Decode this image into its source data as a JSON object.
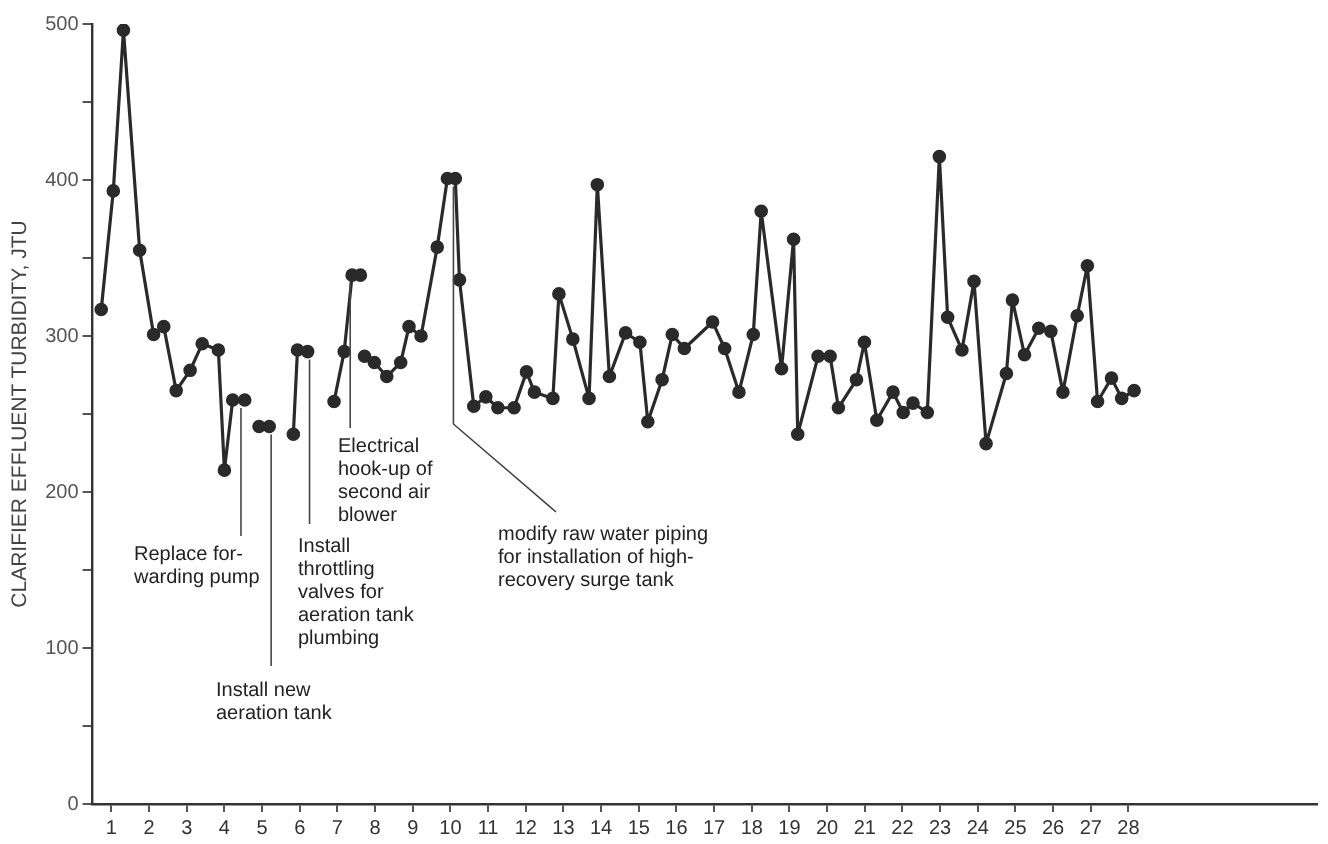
{
  "chart_data": {
    "type": "line",
    "ylabel": "CLARIFIER EFFLUENT TURBIDITY, JTU",
    "x": [
      0.73,
      1.05,
      1.32,
      1.75,
      2.12,
      2.39,
      2.72,
      3.09,
      3.41,
      3.84,
      4.0,
      4.22,
      4.54,
      4.7,
      4.92,
      5.19,
      5.5,
      5.83,
      5.94,
      6.05,
      6.21,
      6.5,
      6.91,
      7.18,
      7.39,
      7.61,
      7.66,
      7.72,
      7.98,
      8.31,
      8.68,
      8.9,
      9.22,
      9.65,
      9.92,
      10.13,
      10.24,
      10.62,
      10.94,
      11.26,
      11.69,
      12.02,
      12.23,
      12.72,
      12.88,
      13.25,
      13.68,
      13.9,
      14.22,
      14.65,
      15.03,
      15.24,
      15.62,
      15.89,
      16.21,
      16.96,
      17.28,
      17.66,
      18.04,
      18.25,
      18.79,
      19.11,
      19.22,
      19.76,
      20.08,
      20.3,
      20.78,
      20.99,
      21.32,
      21.75,
      22.02,
      22.28,
      22.66,
      22.98,
      23.2,
      23.58,
      23.9,
      24.22,
      24.76,
      24.92,
      25.24,
      25.62,
      25.94,
      26.26,
      26.64,
      26.91,
      27.18,
      27.55,
      27.82,
      28.15
    ],
    "series": [
      {
        "color": "#2a2a2a",
        "values": [
          317,
          393,
          496,
          355,
          301,
          306,
          265,
          278,
          295,
          291,
          214,
          259,
          259,
          null,
          242,
          242,
          null,
          237,
          291,
          null,
          290,
          null,
          258,
          290,
          339,
          339,
          null,
          287,
          283,
          274,
          283,
          306,
          300,
          357,
          401,
          401,
          336,
          255,
          261,
          254,
          254,
          277,
          264,
          260,
          327,
          298,
          260,
          397,
          274,
          302,
          296,
          245,
          272,
          301,
          292,
          309,
          292,
          264,
          301,
          380,
          279,
          362,
          237,
          287,
          287,
          254,
          272,
          296,
          246,
          264,
          251,
          257,
          251,
          415,
          312,
          291,
          335,
          231,
          276,
          323,
          288,
          305,
          303,
          264,
          313,
          345,
          258,
          273,
          260,
          265
        ]
      }
    ],
    "xlim": [
      0.5,
      33
    ],
    "xticks": [
      1,
      2,
      3,
      4,
      5,
      6,
      7,
      8,
      9,
      10,
      11,
      12,
      13,
      14,
      15,
      16,
      17,
      18,
      19,
      20,
      21,
      22,
      23,
      24,
      25,
      26,
      27,
      28
    ],
    "ylim": [
      0,
      500
    ],
    "yticks": [
      0,
      {
        "value": 50,
        "label": null
      },
      100,
      {
        "value": 150,
        "label": null
      },
      200,
      {
        "value": 250,
        "label": null
      },
      300,
      {
        "value": 350,
        "label": null
      },
      400,
      {
        "value": 450,
        "label": null
      },
      500
    ],
    "marker": "circle",
    "line_style": "solid",
    "grid": false,
    "legend": false,
    "annotations": [
      {
        "text": "Replace for-\nwarding pump",
        "x": 4.44,
        "y": 259
      },
      {
        "text": "Install new\naeration tank",
        "x": 5.24,
        "y": 242
      },
      {
        "text": "Install\nthrottling\nvalves for\naeration tank\nplumbing",
        "x": 6.26,
        "y": 290
      },
      {
        "text": "Electrical\nhook-up of\nsecond air\nblower",
        "x": 7.34,
        "y": 339
      },
      {
        "text": "modify raw water piping\nfor installation of high-\nrecovery surge tank",
        "x": 10.08,
        "y": 401
      }
    ]
  }
}
